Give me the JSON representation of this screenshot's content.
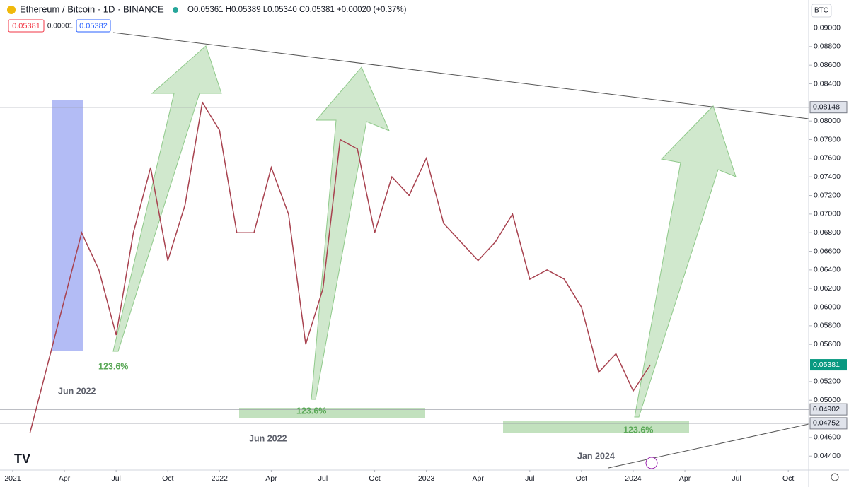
{
  "header": {
    "symbol": "Ethereum / Bitcoin · 1D · BINANCE",
    "ohlc": "O0.05361 H0.05389 L0.05340 C0.05381 +0.00020 (+0.37%)",
    "sell": "0.05381",
    "spread": "0.00001",
    "buy": "0.05382",
    "currency": "BTC"
  },
  "chart_data": {
    "type": "line",
    "x": [
      "2021-02",
      "2021-05",
      "2021-06",
      "2021-07",
      "2021-08",
      "2021-09",
      "2021-10",
      "2021-11",
      "2021-12",
      "2022-01",
      "2022-02",
      "2022-03",
      "2022-04",
      "2022-05",
      "2022-06",
      "2022-07",
      "2022-08",
      "2022-09",
      "2022-10",
      "2022-11",
      "2022-12",
      "2023-01",
      "2023-02",
      "2023-03",
      "2023-04",
      "2023-05",
      "2023-06",
      "2023-07",
      "2023-08",
      "2023-09",
      "2023-10",
      "2023-11",
      "2023-12",
      "2024-01",
      "2024-02"
    ],
    "series": [
      {
        "name": "ETH/BTC",
        "color": "#a8424f",
        "values": [
          0.0465,
          0.068,
          0.064,
          0.057,
          0.068,
          0.075,
          0.065,
          0.071,
          0.082,
          0.079,
          0.068,
          0.068,
          0.075,
          0.07,
          0.056,
          0.062,
          0.078,
          0.077,
          0.068,
          0.074,
          0.072,
          0.076,
          0.069,
          0.067,
          0.065,
          0.067,
          0.07,
          0.063,
          0.064,
          0.063,
          0.06,
          0.053,
          0.055,
          0.051,
          0.05381
        ]
      }
    ],
    "ylim": [
      0.0425,
      0.093
    ],
    "yticks": [
      {
        "value": 0.09,
        "label": "0.09000"
      },
      {
        "value": 0.088,
        "label": "0.08800"
      },
      {
        "value": 0.086,
        "label": "0.08600"
      },
      {
        "value": 0.084,
        "label": "0.08400"
      },
      {
        "value": 0.08,
        "label": "0.08000"
      },
      {
        "value": 0.078,
        "label": "0.07800"
      },
      {
        "value": 0.076,
        "label": "0.07600"
      },
      {
        "value": 0.074,
        "label": "0.07400"
      },
      {
        "value": 0.072,
        "label": "0.07200"
      },
      {
        "value": 0.07,
        "label": "0.07000"
      },
      {
        "value": 0.068,
        "label": "0.06800"
      },
      {
        "value": 0.066,
        "label": "0.06600"
      },
      {
        "value": 0.064,
        "label": "0.06400"
      },
      {
        "value": 0.062,
        "label": "0.06200"
      },
      {
        "value": 0.06,
        "label": "0.06000"
      },
      {
        "value": 0.058,
        "label": "0.05800"
      },
      {
        "value": 0.056,
        "label": "0.05600"
      },
      {
        "value": 0.052,
        "label": "0.05200"
      },
      {
        "value": 0.05,
        "label": "0.05000"
      },
      {
        "value": 0.046,
        "label": "0.04600"
      },
      {
        "value": 0.044,
        "label": "0.04400"
      }
    ],
    "xticks": [
      {
        "value": "2021-01",
        "label": "2021"
      },
      {
        "value": "2021-04",
        "label": "Apr"
      },
      {
        "value": "2021-07",
        "label": "Jul"
      },
      {
        "value": "2021-10",
        "label": "Oct"
      },
      {
        "value": "2022-01",
        "label": "2022"
      },
      {
        "value": "2022-04",
        "label": "Apr"
      },
      {
        "value": "2022-07",
        "label": "Jul"
      },
      {
        "value": "2022-10",
        "label": "Oct"
      },
      {
        "value": "2023-01",
        "label": "2023"
      },
      {
        "value": "2023-04",
        "label": "Apr"
      },
      {
        "value": "2023-07",
        "label": "Jul"
      },
      {
        "value": "2023-10",
        "label": "Oct"
      },
      {
        "value": "2024-01",
        "label": "2024"
      },
      {
        "value": "2024-04",
        "label": "Apr"
      },
      {
        "value": "2024-07",
        "label": "Jul"
      },
      {
        "value": "2024-10",
        "label": "Oct"
      }
    ],
    "price_lines": [
      0.08148,
      0.04902,
      0.04752
    ],
    "last_price": 0.05381,
    "annotations": [
      "123.6%",
      "123.6%",
      "123.6%",
      "Jun 2022",
      "Jun 2022",
      "Jan 2024"
    ]
  }
}
